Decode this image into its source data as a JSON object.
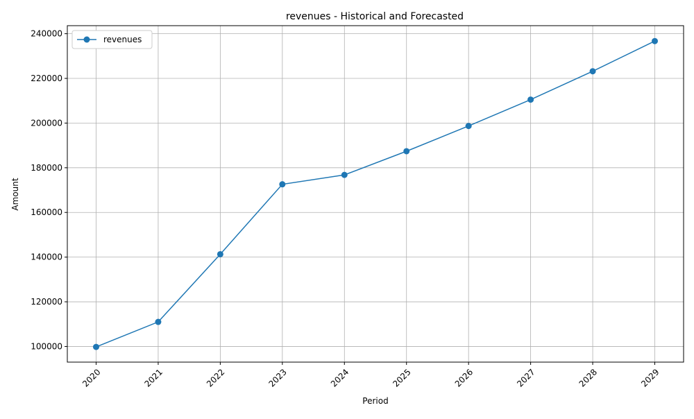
{
  "chart_data": {
    "type": "line",
    "title": "revenues - Historical and Forecasted",
    "xlabel": "Period",
    "ylabel": "Amount",
    "x": [
      "2020",
      "2021",
      "2022",
      "2023",
      "2024",
      "2025",
      "2026",
      "2027",
      "2028",
      "2029"
    ],
    "series": [
      {
        "name": "revenues",
        "values": [
          99800,
          111000,
          141300,
          172600,
          176800,
          187400,
          198700,
          210500,
          223200,
          236700
        ],
        "color": "#1f77b4",
        "marker": "circle"
      }
    ],
    "yticks": [
      100000,
      120000,
      140000,
      160000,
      180000,
      200000,
      220000,
      240000
    ],
    "ylim": [
      93000,
      243600
    ],
    "grid": true,
    "legend": "top-left"
  }
}
